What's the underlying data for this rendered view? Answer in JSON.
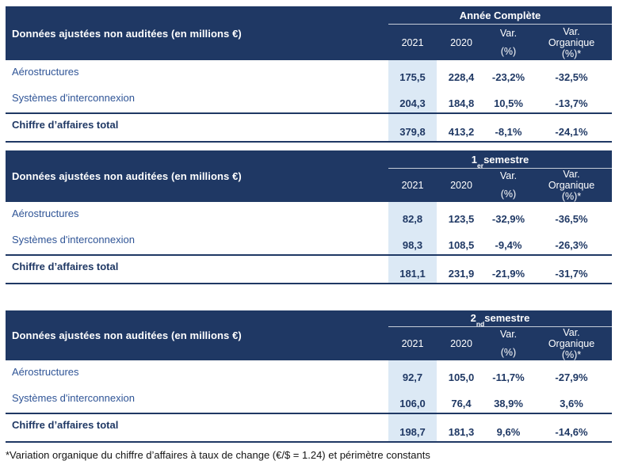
{
  "colors": {
    "header_bg": "#1F3864",
    "header_text": "#FFFFFF",
    "row_label_blue": "#2F5496",
    "value_navy": "#1F3864",
    "highlight_2021": "#DCE9F5"
  },
  "shared": {
    "corner_label": "Données ajustées non auditées (en millions €)",
    "col_2021": "2021",
    "col_2020": "2020",
    "var_line1": "Var.",
    "var_line2": "(%)",
    "varorg_line1": "Var.",
    "varorg_line2": "Organique",
    "varorg_line3": "(%)*"
  },
  "tables": [
    {
      "period": {
        "num": "",
        "sup": "",
        "name": "Année Complète"
      },
      "rows": [
        {
          "label": "Aérostructures",
          "v2021": "175,5",
          "v2020": "228,4",
          "var_pct": "-23,2%",
          "var_org": "-32,5%"
        },
        {
          "label": "Systèmes d'interconnexion",
          "v2021": "204,3",
          "v2020": "184,8",
          "var_pct": "10,5%",
          "var_org": "-13,7%"
        },
        {
          "label": "Chiffre d’affaires total",
          "v2021": "379,8",
          "v2020": "413,2",
          "var_pct": "-8,1%",
          "var_org": "-24,1%"
        }
      ]
    },
    {
      "period": {
        "num": "1",
        "sup": "er",
        "name": " semestre"
      },
      "rows": [
        {
          "label": "Aérostructures",
          "v2021": "82,8",
          "v2020": "123,5",
          "var_pct": "-32,9%",
          "var_org": "-36,5%"
        },
        {
          "label": "Systèmes d'interconnexion",
          "v2021": "98,3",
          "v2020": "108,5",
          "var_pct": "-9,4%",
          "var_org": "-26,3%"
        },
        {
          "label": "Chiffre d’affaires total",
          "v2021": "181,1",
          "v2020": "231,9",
          "var_pct": "-21,9%",
          "var_org": "-31,7%"
        }
      ]
    },
    {
      "period": {
        "num": "2",
        "sup": "nd",
        "name": " semestre"
      },
      "rows": [
        {
          "label": "Aérostructures",
          "v2021": "92,7",
          "v2020": "105,0",
          "var_pct": "-11,7%",
          "var_org": "-27,9%"
        },
        {
          "label": "Systèmes d'interconnexion",
          "v2021": "106,0",
          "v2020": "76,4",
          "var_pct": "38,9%",
          "var_org": "3,6%"
        },
        {
          "label": "Chiffre d’affaires total",
          "v2021": "198,7",
          "v2020": "181,3",
          "var_pct": "9,6%",
          "var_org": "-14,6%"
        }
      ]
    }
  ],
  "footnote": "*Variation organique du chiffre d’affaires à taux de change (€/$ = 1.24) et périmètre constants"
}
